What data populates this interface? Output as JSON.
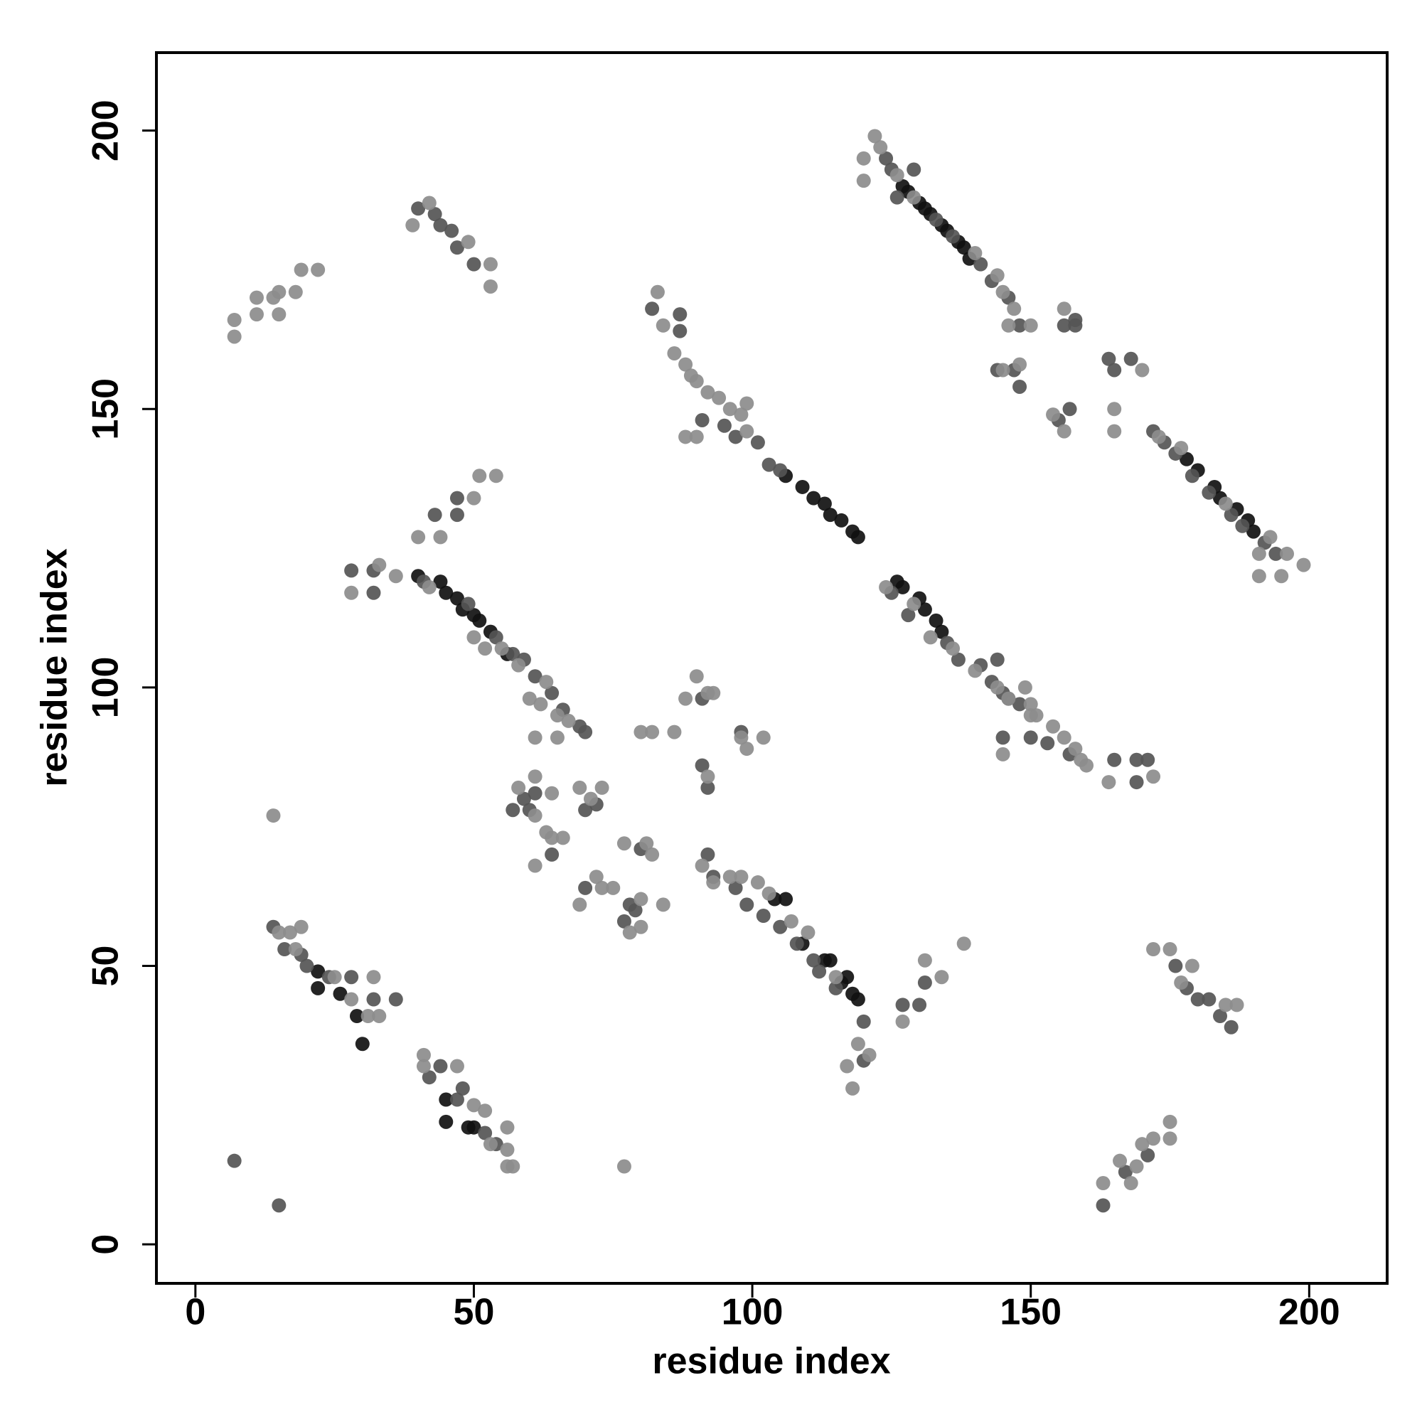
{
  "chart_data": {
    "type": "scatter",
    "xlabel": "residue index",
    "ylabel": "residue index",
    "xlim": [
      -7,
      214
    ],
    "ylim": [
      -7,
      214
    ],
    "xticks": [
      0,
      50,
      100,
      150,
      200
    ],
    "yticks": [
      0,
      50,
      100,
      150,
      200
    ],
    "series": [
      {
        "color": "#111111",
        "x": [
          127,
          128,
          130,
          131,
          132,
          134,
          135,
          137,
          138,
          139,
          178,
          180,
          183,
          184,
          187,
          189,
          190,
          106,
          109,
          111,
          113,
          114,
          116,
          118,
          119,
          126,
          127,
          130,
          131,
          133,
          134,
          40,
          44,
          45,
          47,
          48,
          50,
          51,
          53,
          56,
          22,
          22,
          26,
          29,
          30,
          45,
          45,
          49,
          50,
          104,
          106,
          109,
          113,
          114,
          117,
          116,
          118,
          119
        ],
        "values": [
          190,
          189,
          187,
          186,
          185,
          183,
          182,
          180,
          179,
          177,
          141,
          139,
          136,
          134,
          132,
          130,
          128,
          138,
          136,
          134,
          133,
          131,
          130,
          128,
          127,
          119,
          118,
          116,
          114,
          112,
          110,
          120,
          119,
          117,
          116,
          114,
          113,
          112,
          110,
          106,
          49,
          46,
          45,
          41,
          36,
          26,
          22,
          21,
          21,
          62,
          62,
          54,
          51,
          51,
          48,
          47,
          45,
          44
        ]
      },
      {
        "color": "#555555",
        "x": [
          124,
          125,
          126,
          129,
          133,
          136,
          141,
          143,
          146,
          148,
          156,
          158,
          164,
          165,
          168,
          172,
          174,
          176,
          179,
          182,
          186,
          188,
          192,
          194,
          82,
          87,
          87,
          91,
          95,
          97,
          101,
          103,
          105,
          125,
          128,
          135,
          137,
          141,
          143,
          145,
          148,
          153,
          157,
          41,
          49,
          54,
          57,
          59,
          61,
          64,
          66,
          69,
          70,
          14,
          16,
          19,
          20,
          24,
          28,
          32,
          36,
          42,
          44,
          47,
          48,
          52,
          54,
          92,
          93,
          97,
          99,
          102,
          105,
          108,
          111,
          112,
          120,
          120,
          178,
          180,
          182,
          184,
          186,
          176,
          163,
          167,
          171,
          40,
          43,
          44,
          46,
          47,
          50,
          43,
          47,
          47,
          28,
          32,
          32,
          57,
          59,
          60,
          61,
          64,
          70,
          72,
          70,
          78,
          77,
          79,
          80,
          91,
          91,
          92,
          98,
          144,
          147,
          148,
          155,
          157,
          158,
          165,
          169,
          171,
          169,
          127,
          131,
          130,
          144,
          146,
          145,
          150,
          7,
          15,
          115
        ],
        "values": [
          195,
          193,
          188,
          193,
          184,
          181,
          176,
          173,
          170,
          165,
          165,
          166,
          159,
          157,
          159,
          146,
          144,
          142,
          138,
          135,
          131,
          129,
          126,
          124,
          168,
          167,
          164,
          148,
          147,
          145,
          144,
          140,
          139,
          117,
          113,
          108,
          105,
          104,
          101,
          99,
          97,
          90,
          88,
          119,
          115,
          109,
          106,
          105,
          102,
          99,
          96,
          93,
          92,
          57,
          53,
          52,
          50,
          48,
          48,
          44,
          44,
          30,
          32,
          26,
          28,
          20,
          18,
          70,
          66,
          64,
          61,
          59,
          57,
          54,
          51,
          49,
          40,
          33,
          46,
          44,
          44,
          41,
          39,
          50,
          7,
          13,
          16,
          186,
          185,
          183,
          182,
          179,
          176,
          131,
          134,
          131,
          121,
          121,
          117,
          78,
          80,
          78,
          81,
          70,
          78,
          79,
          64,
          61,
          58,
          60,
          71,
          98,
          86,
          82,
          92,
          157,
          157,
          154,
          148,
          150,
          165,
          87,
          87,
          87,
          83,
          43,
          47,
          43,
          105,
          98,
          91,
          91,
          15,
          7,
          46
        ]
      },
      {
        "color": "#8c8c8c",
        "x": [
          122,
          123,
          120,
          120,
          126,
          129,
          140,
          144,
          145,
          147,
          146,
          150,
          156,
          145,
          148,
          165,
          165,
          170,
          173,
          177,
          185,
          191,
          193,
          196,
          199,
          191,
          195,
          83,
          84,
          86,
          88,
          89,
          90,
          92,
          94,
          96,
          98,
          99,
          88,
          90,
          99,
          124,
          129,
          132,
          136,
          140,
          144,
          146,
          150,
          151,
          154,
          156,
          158,
          159,
          160,
          42,
          50,
          52,
          55,
          58,
          60,
          62,
          63,
          65,
          67,
          61,
          65,
          15,
          17,
          19,
          18,
          25,
          28,
          31,
          33,
          32,
          41,
          41,
          47,
          50,
          52,
          53,
          56,
          57,
          56,
          56,
          91,
          93,
          96,
          98,
          101,
          103,
          107,
          110,
          115,
          119,
          121,
          118,
          117,
          175,
          177,
          179,
          185,
          187,
          163,
          166,
          168,
          169,
          170,
          172,
          175,
          175,
          7,
          7,
          11,
          11,
          14,
          15,
          15,
          18,
          19,
          22,
          39,
          42,
          49,
          53,
          53,
          40,
          44,
          50,
          54,
          51,
          33,
          36,
          28,
          58,
          61,
          61,
          61,
          63,
          64,
          66,
          69,
          71,
          73,
          64,
          69,
          72,
          73,
          75,
          78,
          80,
          81,
          82,
          80,
          84,
          77,
          80,
          82,
          86,
          88,
          90,
          92,
          93,
          98,
          102,
          99,
          92,
          154,
          156,
          164,
          172,
          127,
          131,
          134,
          138,
          145,
          149,
          150,
          14,
          77,
          172
        ],
        "values": [
          199,
          197,
          195,
          191,
          192,
          188,
          178,
          174,
          171,
          168,
          165,
          165,
          168,
          157,
          158,
          150,
          146,
          157,
          145,
          143,
          133,
          124,
          127,
          124,
          122,
          120,
          120,
          171,
          165,
          160,
          158,
          156,
          155,
          153,
          152,
          150,
          149,
          146,
          145,
          145,
          151,
          118,
          115,
          109,
          107,
          103,
          100,
          98,
          97,
          95,
          93,
          91,
          89,
          87,
          86,
          118,
          109,
          107,
          107,
          104,
          98,
          97,
          101,
          95,
          94,
          91,
          91,
          56,
          56,
          57,
          53,
          48,
          44,
          41,
          41,
          48,
          34,
          32,
          32,
          25,
          24,
          18,
          17,
          14,
          14,
          21,
          68,
          65,
          66,
          66,
          65,
          63,
          58,
          56,
          48,
          36,
          34,
          28,
          32,
          53,
          47,
          50,
          43,
          43,
          11,
          15,
          11,
          14,
          18,
          19,
          22,
          19,
          163,
          166,
          167,
          170,
          170,
          171,
          167,
          171,
          175,
          175,
          183,
          187,
          180,
          172,
          176,
          127,
          127,
          134,
          138,
          138,
          122,
          120,
          117,
          82,
          84,
          68,
          77,
          74,
          73,
          73,
          82,
          80,
          82,
          81,
          61,
          66,
          64,
          64,
          56,
          57,
          72,
          70,
          62,
          61,
          72,
          92,
          92,
          92,
          98,
          102,
          99,
          99,
          91,
          91,
          89,
          84,
          149,
          146,
          83,
          84,
          40,
          51,
          48,
          54,
          88,
          100,
          95,
          77,
          14,
          53
        ]
      }
    ]
  }
}
